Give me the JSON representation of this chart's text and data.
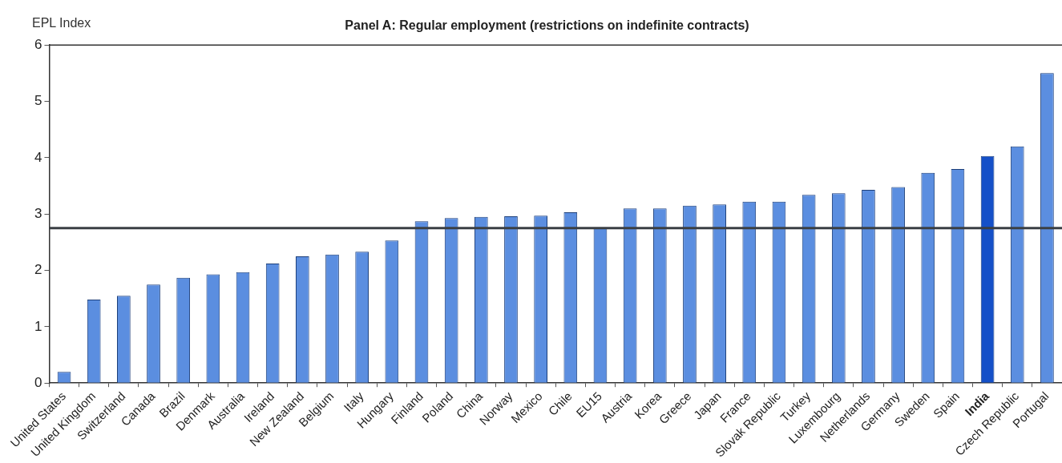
{
  "chart_data": {
    "type": "bar",
    "title": "Panel A: Regular employment (restrictions on indefinite contracts)",
    "ylabel": "EPL Index",
    "categories": [
      "United States",
      "United Kingdom",
      "Switzerland",
      "Canada",
      "Brazil",
      "Denmark",
      "Australia",
      "Ireland",
      "New Zealand",
      "Belgium",
      "Italy",
      "Hungary",
      "Finland",
      "Poland",
      "China",
      "Norway",
      "Mexico",
      "Chile",
      "EU15",
      "Austria",
      "Korea",
      "Greece",
      "Japan",
      "France",
      "Slovak Republic",
      "Turkey",
      "Luxembourg",
      "Netherlands",
      "Germany",
      "Sweden",
      "Spain",
      "India",
      "Czech Republic",
      "Portugal"
    ],
    "values": [
      0.2,
      1.48,
      1.55,
      1.75,
      1.87,
      1.93,
      1.97,
      2.12,
      2.25,
      2.28,
      2.33,
      2.53,
      2.87,
      2.93,
      2.95,
      2.96,
      2.97,
      3.03,
      2.75,
      3.1,
      3.1,
      3.15,
      3.17,
      3.22,
      3.22,
      3.34,
      3.37,
      3.43,
      3.48,
      3.73,
      3.8,
      4.03,
      4.2,
      5.5
    ],
    "colors": [
      "#5b8ee0",
      "#5b8ee0",
      "#5b8ee0",
      "#5b8ee0",
      "#5b8ee0",
      "#5b8ee0",
      "#5b8ee0",
      "#5b8ee0",
      "#5b8ee0",
      "#5b8ee0",
      "#5b8ee0",
      "#5b8ee0",
      "#5b8ee0",
      "#5b8ee0",
      "#5b8ee0",
      "#5b8ee0",
      "#5b8ee0",
      "#5b8ee0",
      "#5b8ee0",
      "#5b8ee0",
      "#5b8ee0",
      "#5b8ee0",
      "#5b8ee0",
      "#5b8ee0",
      "#5b8ee0",
      "#5b8ee0",
      "#5b8ee0",
      "#5b8ee0",
      "#5b8ee0",
      "#5b8ee0",
      "#5b8ee0",
      "#1550c8",
      "#5b8ee0",
      "#5b8ee0"
    ],
    "ylim": [
      0,
      6
    ],
    "yticks": [
      0,
      1,
      2,
      3,
      4,
      5,
      6
    ],
    "grid": false,
    "legend": false,
    "ref_lines": [
      {
        "axis": "y",
        "value": 2.75,
        "color": "#3a3f44"
      }
    ]
  }
}
